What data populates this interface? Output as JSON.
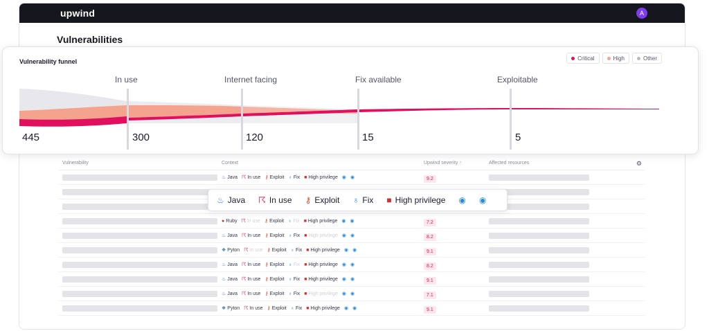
{
  "app": {
    "logo": "upwind",
    "avatar_initial": "A"
  },
  "page": {
    "title": "Vulnerabilities"
  },
  "funnel": {
    "title": "Vulnerability funnel",
    "legend": [
      {
        "label": "Critical",
        "color": "#e0105f"
      },
      {
        "label": "High",
        "color": "#f4a38f"
      },
      {
        "label": "Other",
        "color": "#b8b8c0"
      }
    ],
    "stages": [
      {
        "label": "",
        "count": "445"
      },
      {
        "label": "In use",
        "count": "300"
      },
      {
        "label": "Internet facing",
        "count": "120"
      },
      {
        "label": "Fix available",
        "count": "15"
      },
      {
        "label": "Exploitable",
        "count": "5"
      }
    ]
  },
  "table": {
    "headers": [
      "Vulnerability",
      "Context",
      "Upwind severity ↑",
      "Affected resources"
    ],
    "tags": {
      "inuse": "In use",
      "exploit": "Exploit",
      "fix": "Fix",
      "priv": "High privilege"
    },
    "rows": [
      {
        "lang": "Java",
        "lang_icon": "java-icon",
        "severity": "9.2"
      },
      {
        "lang": "",
        "lang_icon": "",
        "severity": ""
      },
      {
        "lang": "",
        "lang_icon": "",
        "severity": ""
      },
      {
        "lang": "Ruby",
        "lang_icon": "ruby-icon",
        "severity": "7.2"
      },
      {
        "lang": "Java",
        "lang_icon": "java-icon",
        "severity": "8.2"
      },
      {
        "lang": "Pyton",
        "lang_icon": "python-icon",
        "severity": "9.1"
      },
      {
        "lang": "Java",
        "lang_icon": "java-icon",
        "severity": "8.2"
      },
      {
        "lang": "Java",
        "lang_icon": "java-icon",
        "severity": "9.1"
      },
      {
        "lang": "Java",
        "lang_icon": "java-icon",
        "severity": "7.1"
      },
      {
        "lang": "Pyton",
        "lang_icon": "python-icon",
        "severity": "9.1"
      }
    ]
  },
  "popup": {
    "java": "Java",
    "inuse": "In use",
    "exploit": "Exploit",
    "fix": "Fix",
    "priv": "High privilege"
  }
}
